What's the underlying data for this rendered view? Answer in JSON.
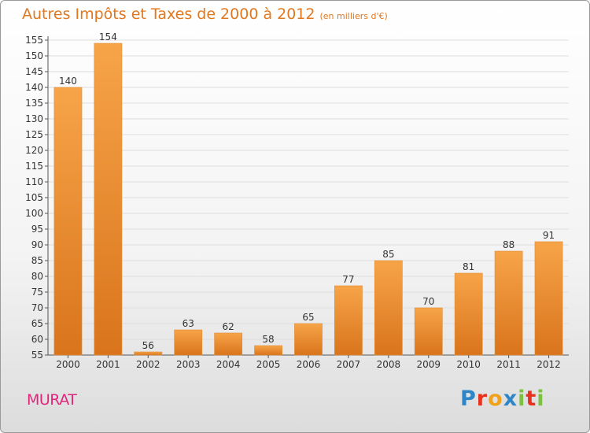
{
  "header": {
    "title": "Autres Impôts et Taxes de 2000 à 2012",
    "subtitle": "(en milliers d'€)"
  },
  "footer": {
    "place": "MURAT",
    "logo_text": "Proxiti",
    "logo_colors": [
      "#2e86c9",
      "#e6321e",
      "#f0a21c",
      "#2e86c9",
      "#7cc242",
      "#e6321e",
      "#7cc242"
    ]
  },
  "colors": {
    "bar_light": "#f7a448",
    "bar_dark": "#d9741c",
    "title": "#e07820",
    "grid": "#dddddd"
  },
  "chart_data": {
    "type": "bar",
    "categories": [
      "2000",
      "2001",
      "2002",
      "2003",
      "2004",
      "2005",
      "2006",
      "2007",
      "2008",
      "2009",
      "2010",
      "2011",
      "2012"
    ],
    "values": [
      140,
      154,
      56,
      63,
      62,
      58,
      65,
      77,
      85,
      70,
      81,
      88,
      91
    ],
    "ylim": [
      55,
      155
    ],
    "yticks": [
      55,
      60,
      65,
      70,
      75,
      80,
      85,
      90,
      95,
      100,
      105,
      110,
      115,
      120,
      125,
      130,
      135,
      140,
      145,
      150,
      155
    ],
    "grid": true,
    "data_labels": true
  }
}
